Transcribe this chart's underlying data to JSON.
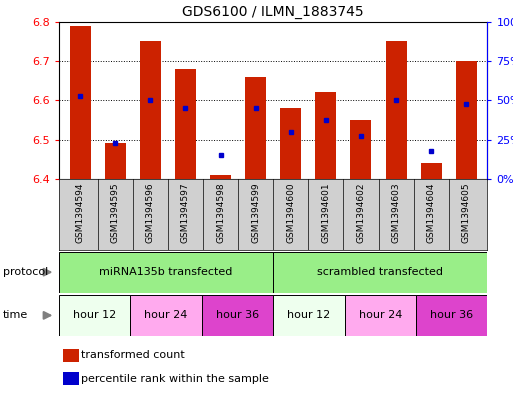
{
  "title": "GDS6100 / ILMN_1883745",
  "samples": [
    "GSM1394594",
    "GSM1394595",
    "GSM1394596",
    "GSM1394597",
    "GSM1394598",
    "GSM1394599",
    "GSM1394600",
    "GSM1394601",
    "GSM1394602",
    "GSM1394603",
    "GSM1394604",
    "GSM1394605"
  ],
  "bar_bottoms": [
    6.4,
    6.4,
    6.4,
    6.4,
    6.4,
    6.4,
    6.4,
    6.4,
    6.4,
    6.4,
    6.4,
    6.4
  ],
  "bar_tops": [
    6.79,
    6.49,
    6.75,
    6.68,
    6.41,
    6.66,
    6.58,
    6.62,
    6.55,
    6.75,
    6.44,
    6.7
  ],
  "percentile_values": [
    6.61,
    6.49,
    6.6,
    6.58,
    6.46,
    6.58,
    6.52,
    6.55,
    6.51,
    6.6,
    6.47,
    6.59
  ],
  "ylim": [
    6.4,
    6.8
  ],
  "yticks": [
    6.4,
    6.5,
    6.6,
    6.7,
    6.8
  ],
  "right_yticks": [
    0,
    25,
    50,
    75,
    100
  ],
  "bar_color": "#cc2200",
  "percentile_color": "#0000cc",
  "plot_bg": "#ffffff",
  "xticklabel_bg": "#d0d0d0",
  "protocol_color": "#99ee88",
  "time_groups": [
    {
      "label": "hour 12",
      "start": 0,
      "end": 2,
      "color": "#eeffee"
    },
    {
      "label": "hour 24",
      "start": 2,
      "end": 4,
      "color": "#ffaaee"
    },
    {
      "label": "hour 36",
      "start": 4,
      "end": 6,
      "color": "#dd44cc"
    },
    {
      "label": "hour 12",
      "start": 6,
      "end": 8,
      "color": "#eeffee"
    },
    {
      "label": "hour 24",
      "start": 8,
      "end": 10,
      "color": "#ffaaee"
    },
    {
      "label": "hour 36",
      "start": 10,
      "end": 12,
      "color": "#dd44cc"
    }
  ],
  "protocol_groups": [
    {
      "label": "miRNA135b transfected",
      "start": 0,
      "end": 6
    },
    {
      "label": "scrambled transfected",
      "start": 6,
      "end": 12
    }
  ],
  "legend_items": [
    {
      "label": "transformed count",
      "color": "#cc2200"
    },
    {
      "label": "percentile rank within the sample",
      "color": "#0000cc"
    }
  ]
}
